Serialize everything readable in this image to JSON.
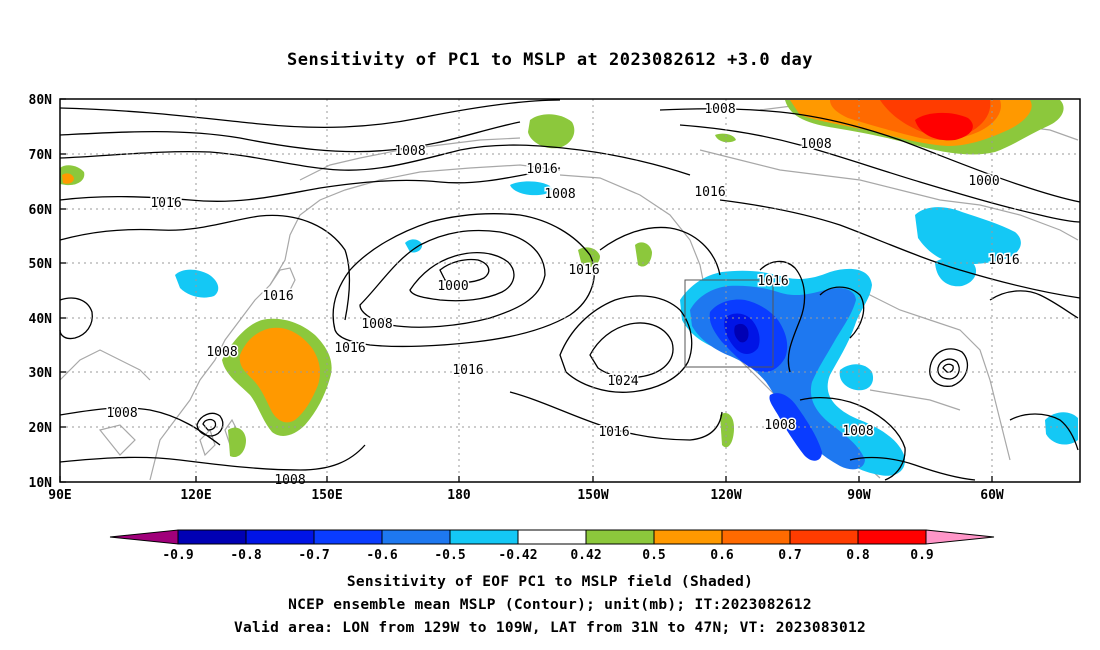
{
  "title": "Sensitivity of PC1 to MSLP at 2023082612 +3.0 day",
  "map": {
    "lat_ticks": [
      "80N",
      "70N",
      "60N",
      "50N",
      "40N",
      "30N",
      "20N",
      "10N"
    ],
    "lon_ticks": [
      "90E",
      "120E",
      "150E",
      "180",
      "150W",
      "120W",
      "90W",
      "60W"
    ],
    "contour_labels": [
      "1008",
      "1008",
      "1008",
      "1016",
      "1016",
      "1008",
      "1016",
      "1016",
      "1000",
      "1016",
      "1016",
      "1008",
      "1016",
      "1016",
      "1024",
      "1016",
      "1008",
      "1008",
      "1008",
      "1016",
      "1016",
      "1000",
      "1008"
    ],
    "valid_area": {
      "lon_from": "129W",
      "lon_to": "109W",
      "lat_from": "31N",
      "lat_to": "47N"
    }
  },
  "colorbar": {
    "labels": [
      "-0.9",
      "-0.8",
      "-0.7",
      "-0.6",
      "-0.5",
      "-0.42",
      "0.42",
      "0.5",
      "0.6",
      "0.7",
      "0.8",
      "0.9"
    ],
    "colors": [
      "#a0007a",
      "#0000b4",
      "#0014e6",
      "#0a3cff",
      "#1e78f0",
      "#14c8f5",
      "#ffffff",
      "#8cc83c",
      "#ff9900",
      "#ff6a00",
      "#ff3c00",
      "#ff0000",
      "#ff96c8"
    ]
  },
  "caption": {
    "line1": "Sensitivity of EOF PC1 to MSLP field (Shaded)",
    "line2": "NCEP ensemble mean MSLP (Contour); unit(mb); IT:2023082612",
    "line3": "Valid area: LON from 129W to 109W, LAT from 31N to 47N; VT: 2023083012"
  }
}
